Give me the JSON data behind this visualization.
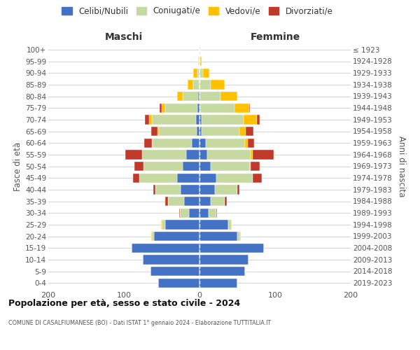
{
  "age_groups": [
    "0-4",
    "5-9",
    "10-14",
    "15-19",
    "20-24",
    "25-29",
    "30-34",
    "35-39",
    "40-44",
    "45-49",
    "50-54",
    "55-59",
    "60-64",
    "65-69",
    "70-74",
    "75-79",
    "80-84",
    "85-89",
    "90-94",
    "95-99",
    "100+"
  ],
  "birth_years": [
    "2019-2023",
    "2014-2018",
    "2009-2013",
    "2004-2008",
    "1999-2003",
    "1994-1998",
    "1989-1993",
    "1984-1988",
    "1979-1983",
    "1974-1978",
    "1969-1973",
    "1964-1968",
    "1959-1963",
    "1954-1958",
    "1949-1953",
    "1944-1948",
    "1939-1943",
    "1934-1938",
    "1929-1933",
    "1924-1928",
    "≤ 1923"
  ],
  "colors": {
    "celibe": "#4472c4",
    "coniugato": "#c5d9a0",
    "vedovo": "#ffc000",
    "divorziato": "#c0392b"
  },
  "maschi": {
    "celibe": [
      55,
      65,
      75,
      90,
      60,
      45,
      14,
      20,
      25,
      30,
      22,
      18,
      10,
      4,
      5,
      3,
      2,
      0,
      0,
      0,
      0
    ],
    "coniugato": [
      0,
      0,
      0,
      0,
      3,
      5,
      12,
      22,
      33,
      50,
      52,
      58,
      52,
      50,
      58,
      42,
      20,
      8,
      3,
      1,
      0
    ],
    "vedovo": [
      0,
      0,
      0,
      0,
      1,
      1,
      0,
      0,
      0,
      0,
      0,
      0,
      1,
      2,
      4,
      5,
      8,
      8,
      5,
      1,
      0
    ],
    "divorziato": [
      0,
      0,
      0,
      0,
      0,
      0,
      1,
      3,
      3,
      8,
      12,
      22,
      10,
      8,
      5,
      3,
      0,
      0,
      0,
      0,
      0
    ]
  },
  "femmine": {
    "celibe": [
      50,
      60,
      65,
      85,
      50,
      38,
      12,
      15,
      20,
      22,
      15,
      10,
      8,
      3,
      3,
      1,
      0,
      0,
      0,
      0,
      0
    ],
    "coniugato": [
      0,
      0,
      0,
      0,
      4,
      5,
      10,
      18,
      30,
      48,
      52,
      58,
      52,
      50,
      55,
      45,
      28,
      15,
      5,
      1,
      0
    ],
    "vedovo": [
      0,
      0,
      0,
      0,
      1,
      0,
      0,
      0,
      0,
      0,
      1,
      2,
      4,
      8,
      18,
      20,
      22,
      18,
      8,
      2,
      1
    ],
    "divorziato": [
      0,
      0,
      0,
      0,
      0,
      0,
      1,
      3,
      3,
      12,
      12,
      28,
      8,
      10,
      4,
      1,
      0,
      0,
      0,
      0,
      0
    ]
  },
  "title": "Popolazione per età, sesso e stato civile - 2024",
  "subtitle": "COMUNE DI CASALFIUMANESE (BO) - Dati ISTAT 1° gennaio 2024 - Elaborazione TUTTITALIA.IT",
  "xlabel_left": "Maschi",
  "xlabel_right": "Femmine",
  "ylabel_left": "Fasce di età",
  "ylabel_right": "Anni di nascita",
  "xlim": 200,
  "background_color": "#ffffff",
  "grid_color": "#cccccc"
}
